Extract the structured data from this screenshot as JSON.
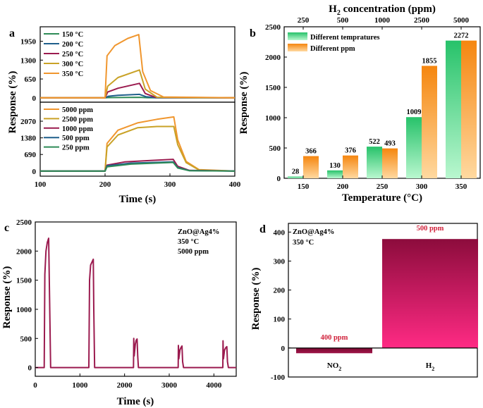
{
  "chart_data": [
    {
      "panel": "a",
      "type": "line",
      "title": "",
      "xlabel": "Time (s)",
      "ylabel": "Response (%)",
      "xlim": [
        100,
        400
      ],
      "x_ticks": [
        "100",
        "200",
        "300",
        "400"
      ],
      "subplots": [
        {
          "position": "top",
          "ylim": [
            -150,
            2450
          ],
          "y_ticks": [
            "0",
            "650",
            "1300",
            "1950"
          ],
          "series": [
            {
              "name": "150 °C",
              "color": "#2e8b57",
              "x": [
                100,
                200,
                205,
                253,
                265,
                280,
                400
              ],
              "y": [
                0,
                0,
                8,
                18,
                5,
                0,
                0
              ]
            },
            {
              "name": "200 °C",
              "color": "#1f5f8b",
              "x": [
                100,
                200,
                205,
                220,
                253,
                263,
                278,
                400
              ],
              "y": [
                0,
                0,
                55,
                85,
                120,
                40,
                5,
                0
              ]
            },
            {
              "name": "250 °C",
              "color": "#9b1b4f",
              "x": [
                100,
                200,
                204,
                220,
                253,
                262,
                278,
                400
              ],
              "y": [
                0,
                0,
                200,
                330,
                500,
                150,
                15,
                0
              ]
            },
            {
              "name": "300 °C",
              "color": "#c9a227",
              "x": [
                100,
                200,
                204,
                220,
                253,
                262,
                280,
                400
              ],
              "y": [
                0,
                0,
                400,
                700,
                960,
                300,
                20,
                0
              ]
            },
            {
              "name": "350 °C",
              "color": "#f0962e",
              "x": [
                100,
                200,
                203,
                215,
                235,
                252,
                258,
                270,
                290,
                400
              ],
              "y": [
                0,
                0,
                1450,
                1800,
                2050,
                2180,
                900,
                250,
                30,
                0
              ]
            }
          ]
        },
        {
          "position": "bottom",
          "ylim": [
            -210,
            2860
          ],
          "y_ticks": [
            "0",
            "690",
            "1380",
            "2070"
          ],
          "series": [
            {
              "name": "5000 ppm",
              "color": "#f0962e",
              "x": [
                100,
                200,
                203,
                220,
                250,
                280,
                306,
                312,
                325,
                345,
                400
              ],
              "y": [
                0,
                0,
                1150,
                1700,
                2000,
                2150,
                2250,
                1300,
                400,
                60,
                0
              ]
            },
            {
              "name": "2500 ppm",
              "color": "#c9a227",
              "x": [
                100,
                200,
                203,
                220,
                250,
                280,
                306,
                312,
                325,
                345,
                400
              ],
              "y": [
                0,
                0,
                1000,
                1500,
                1800,
                1850,
                1850,
                1100,
                350,
                40,
                0
              ]
            },
            {
              "name": "1000 ppm",
              "color": "#9b1b4f",
              "x": [
                100,
                200,
                203,
                230,
                270,
                305,
                312,
                330,
                400
              ],
              "y": [
                0,
                0,
                250,
                380,
                440,
                490,
                200,
                30,
                0
              ]
            },
            {
              "name": "500 ppm",
              "color": "#1f5f8b",
              "x": [
                100,
                200,
                203,
                240,
                305,
                312,
                330,
                400
              ],
              "y": [
                0,
                0,
                220,
                330,
                380,
                150,
                20,
                0
              ]
            },
            {
              "name": "250 ppm",
              "color": "#2e8b57",
              "x": [
                100,
                200,
                203,
                240,
                305,
                312,
                330,
                400
              ],
              "y": [
                0,
                0,
                180,
                290,
                360,
                130,
                15,
                0
              ]
            }
          ]
        }
      ]
    },
    {
      "panel": "b",
      "type": "bar",
      "xlabel": "Temperature (°C)",
      "ylabel": "Response (%)",
      "top_xlabel": "H2 concentration (ppm)",
      "categories": [
        "150",
        "200",
        "250",
        "300",
        "350"
      ],
      "top_categories": [
        "250",
        "500",
        "1000",
        "2500",
        "5000"
      ],
      "ylim": [
        0,
        2500
      ],
      "y_ticks": [
        "0",
        "500",
        "1000",
        "1500",
        "2000",
        "2500"
      ],
      "series": [
        {
          "name": "Different tempratures",
          "color": "#2ecc71",
          "values": [
            28,
            130,
            522,
            1009,
            2272
          ],
          "labels": [
            "28",
            "130",
            "522",
            "1009",
            "2272"
          ]
        },
        {
          "name": "Different ppm",
          "color": "#f7941d",
          "values": [
            366,
            376,
            493,
            1855,
            2272
          ],
          "labels": [
            "366",
            "376",
            "493",
            "1855",
            ""
          ]
        }
      ]
    },
    {
      "panel": "c",
      "type": "line",
      "xlabel": "Time (s)",
      "ylabel": "Response (%)",
      "xlim": [
        0,
        4500
      ],
      "ylim": [
        -150,
        2500
      ],
      "x_ticks": [
        "0",
        "1000",
        "2000",
        "3000",
        "4000"
      ],
      "y_ticks": [
        "0",
        "500",
        "1000",
        "1500",
        "2000",
        "2500"
      ],
      "annotations": [
        "ZnO@Ag4%",
        "350 °C",
        "5000 ppm"
      ],
      "series": [
        {
          "name": "ZnO@Ag4%",
          "color": "#9b1b4f",
          "x": [
            0,
            200,
            215,
            240,
            270,
            300,
            320,
            345,
            1200,
            1215,
            1240,
            1275,
            1300,
            1310,
            1330,
            2200,
            2205,
            2215,
            2240,
            2260,
            2280,
            2295,
            2310,
            2330,
            3200,
            3205,
            3215,
            3240,
            3260,
            3285,
            3300,
            3320,
            4200,
            4205,
            4215,
            4240,
            4265,
            4290,
            4305,
            4325,
            4500
          ],
          "y": [
            0,
            0,
            1600,
            2000,
            2150,
            2220,
            1200,
            0,
            0,
            1500,
            1760,
            1820,
            1860,
            1000,
            0,
            0,
            500,
            200,
            400,
            470,
            490,
            200,
            0,
            0,
            0,
            380,
            150,
            300,
            340,
            370,
            100,
            0,
            0,
            460,
            150,
            300,
            340,
            360,
            100,
            0,
            0
          ]
        }
      ]
    },
    {
      "panel": "d",
      "type": "bar",
      "xlabel": "",
      "ylabel": "Response (%)",
      "ylim": [
        -100,
        430
      ],
      "y_ticks": [
        "-100",
        "0",
        "100",
        "200",
        "300",
        "400"
      ],
      "annotations": [
        "ZnO@Ag4%",
        "350 °C"
      ],
      "categories": [
        "NO",
        "H"
      ],
      "category_subscripts": [
        "2",
        "2"
      ],
      "values": [
        -18,
        376
      ],
      "bar_labels": [
        "400 ppm",
        "500 ppm"
      ],
      "colors": [
        "#8b0f3a",
        "#ff1f7a"
      ]
    }
  ],
  "panel_labels": [
    "a",
    "b",
    "c",
    "d"
  ],
  "panel_b_top_title": {
    "main": "H",
    "sub": "2",
    "rest": " concentration (ppm)"
  }
}
